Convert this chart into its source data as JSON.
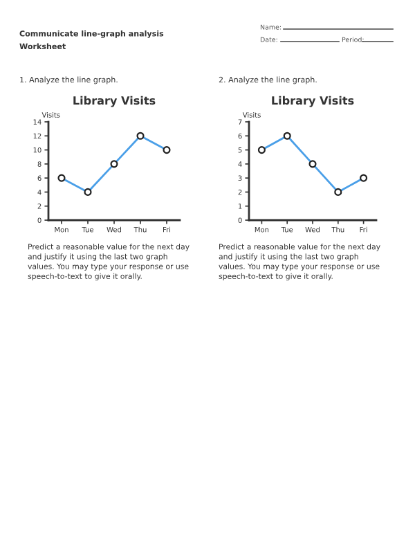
{
  "chart_data": [
    {
      "type": "line",
      "title": "Library Visits",
      "ylabel": "Visits",
      "categories": [
        "Mon",
        "Tue",
        "Wed",
        "Thu",
        "Fri"
      ],
      "values": [
        6,
        4,
        8,
        12,
        10
      ],
      "color": "#4a9fe8",
      "marker": "circle",
      "ylim": [
        0,
        14
      ],
      "yticks": [
        0,
        2,
        4,
        6,
        8,
        10,
        12,
        14
      ],
      "grid": false,
      "annotations": [
        "Communicate line-graph analysis Worksheet",
        "1. Analyze the line graph.",
        "Predict a reasonable value for the next day and justify it using the last two graph values. You may type your response or use speech-to-text to give it orally."
      ]
    },
    {
      "type": "line",
      "title": "Library Visits",
      "ylabel": "Visits",
      "categories": [
        "Mon",
        "Tue",
        "Wed",
        "Thu",
        "Fri"
      ],
      "values": [
        5,
        6,
        4,
        2,
        3
      ],
      "color": "#4a9fe8",
      "marker": "circle",
      "ylim": [
        0,
        7
      ],
      "yticks": [
        0,
        1,
        2,
        3,
        4,
        5,
        6,
        7
      ],
      "grid": false,
      "annotations": [
        "Name:",
        "Date:",
        "Period:",
        "2. Analyze the line graph.",
        "Predict a reasonable value for the next day and justify it using the last two graph values. You may type your response or use speech-to-text to give it orally."
      ]
    }
  ]
}
